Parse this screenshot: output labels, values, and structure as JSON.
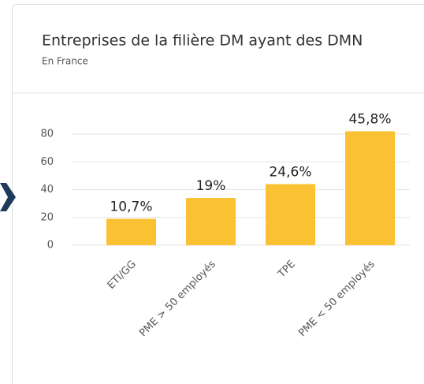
{
  "chart_data": {
    "type": "bar",
    "title": "Entreprises de la filière DM ayant des DMN",
    "subtitle": "En France",
    "categories": [
      "ETI/GG",
      "PME > 50 employés",
      "TPE",
      "PME < 50 employés"
    ],
    "values": [
      19,
      34,
      44,
      82
    ],
    "color": "#fac232",
    "annotations": [
      "10,7%",
      "19%",
      "24,6%",
      "45,8%"
    ],
    "ylim": [
      0,
      80
    ],
    "yticks": [
      0,
      20,
      40,
      60,
      80
    ],
    "grid": true
  }
}
